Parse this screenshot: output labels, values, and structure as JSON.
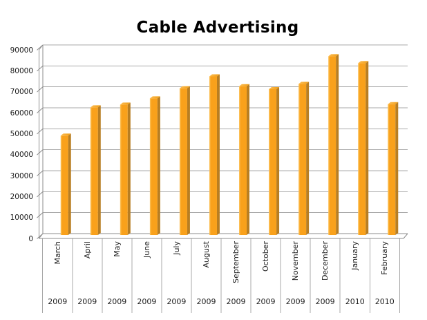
{
  "page": {
    "background": "#FFFFFF"
  },
  "chart_data": {
    "type": "bar",
    "title": "Cable Advertising",
    "categories": [
      "March",
      "April",
      "May",
      "June",
      "July",
      "August",
      "September",
      "October",
      "November",
      "December",
      "January",
      "February"
    ],
    "category_years": [
      "2009",
      "2009",
      "2009",
      "2009",
      "2009",
      "2009",
      "2009",
      "2009",
      "2009",
      "2009",
      "2010",
      "2010"
    ],
    "values": [
      47700,
      61200,
      62500,
      65500,
      70300,
      76000,
      71300,
      69900,
      72400,
      85600,
      82300,
      62700
    ],
    "yticks": [
      0,
      10000,
      20000,
      30000,
      40000,
      50000,
      60000,
      70000,
      80000,
      90000
    ],
    "ylim": [
      0,
      90000
    ],
    "ytick_interval": 10000,
    "grid": true,
    "legend": false,
    "style_3d": true,
    "colors": {
      "bar_face": "#F9A11B",
      "bar_face_highlight": "#FDC55F",
      "bar_side": "#B87E22",
      "bar_top_light": "#FDBE54",
      "bar_top_dark": "#EE9B13",
      "gridline": "#A8A8A8",
      "frame": "#8C8C8C",
      "text": "#1A1A1A",
      "title": "#000000",
      "background": "#FFFFFF"
    }
  }
}
